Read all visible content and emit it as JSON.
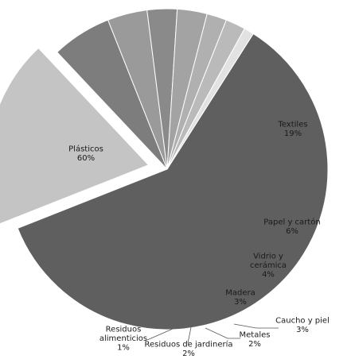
{
  "chart_data": {
    "type": "pie",
    "title": "",
    "legend": "none",
    "slices": [
      {
        "label": "Plásticos",
        "label_lines": [
          "Plásticos"
        ],
        "value": 60,
        "value_label": "60%",
        "color": "#5f5f5f",
        "exploded": false
      },
      {
        "label": "Textiles",
        "label_lines": [
          "Textiles"
        ],
        "value": 19,
        "value_label": "19%",
        "color": "#c4c4c4",
        "exploded": true
      },
      {
        "label": "Papel y cartón",
        "label_lines": [
          "Papel y cartón"
        ],
        "value": 6,
        "value_label": "6%",
        "color": "#7d7d7d",
        "exploded": false
      },
      {
        "label": "Vidrio y cerámica",
        "label_lines": [
          "Vidrio y",
          "cerámica"
        ],
        "value": 4,
        "value_label": "4%",
        "color": "#9a9a9a",
        "exploded": false
      },
      {
        "label": "Madera",
        "label_lines": [
          "Madera"
        ],
        "value": 3,
        "value_label": "3%",
        "color": "#8a8a8a",
        "exploded": false
      },
      {
        "label": "Caucho y piel",
        "label_lines": [
          "Caucho y piel"
        ],
        "value": 3,
        "value_label": "3%",
        "color": "#a3a3a3",
        "exploded": false
      },
      {
        "label": "Metales",
        "label_lines": [
          "Metales"
        ],
        "value": 2,
        "value_label": "2%",
        "color": "#b0b0b0",
        "exploded": false
      },
      {
        "label": "Residuos de jardinería",
        "label_lines": [
          "Residuos de jardinería"
        ],
        "value": 2,
        "value_label": "2%",
        "color": "#bababa",
        "exploded": false
      },
      {
        "label": "Residuos alimenticios",
        "label_lines": [
          "Residuos",
          "alimenticios"
        ],
        "value": 1,
        "value_label": "1%",
        "color": "#e2e2e2",
        "exploded": false
      }
    ]
  }
}
